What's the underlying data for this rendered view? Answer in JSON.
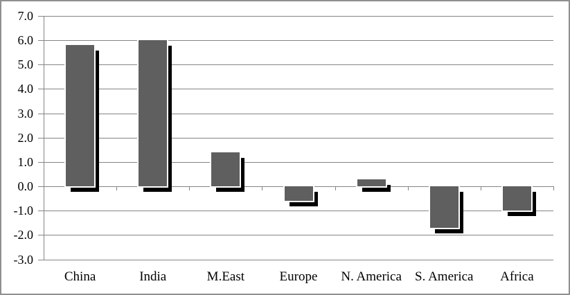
{
  "chart_data": {
    "type": "bar",
    "categories": [
      "China",
      "India",
      "M.East",
      "Europe",
      "N. America",
      "S. America",
      "Africa"
    ],
    "values": [
      5.8,
      6.0,
      1.4,
      -0.6,
      0.3,
      -1.7,
      -1.0
    ],
    "title": "",
    "xlabel": "",
    "ylabel": "",
    "ylim": [
      -3.0,
      7.0
    ],
    "ytick_step": 1.0,
    "ytick_labels": [
      "7.0",
      "6.0",
      "5.0",
      "4.0",
      "3.0",
      "2.0",
      "1.0",
      "0.0",
      "-1.0",
      "-2.0",
      "-3.0"
    ],
    "ytick_values": [
      7.0,
      6.0,
      5.0,
      4.0,
      3.0,
      2.0,
      1.0,
      0.0,
      -1.0,
      -2.0,
      -3.0
    ],
    "grid": true,
    "legend": false,
    "bar_style": "solid with black drop shadow offset right-down",
    "colors": {
      "bar_fill": "#5f5f5f",
      "bar_outline": "#ffffff",
      "shadow": "#000000",
      "gridline": "#848484",
      "axis": "#848484",
      "text": "#000000",
      "background": "#ffffff",
      "figure_border": "#8f8f8f"
    }
  }
}
